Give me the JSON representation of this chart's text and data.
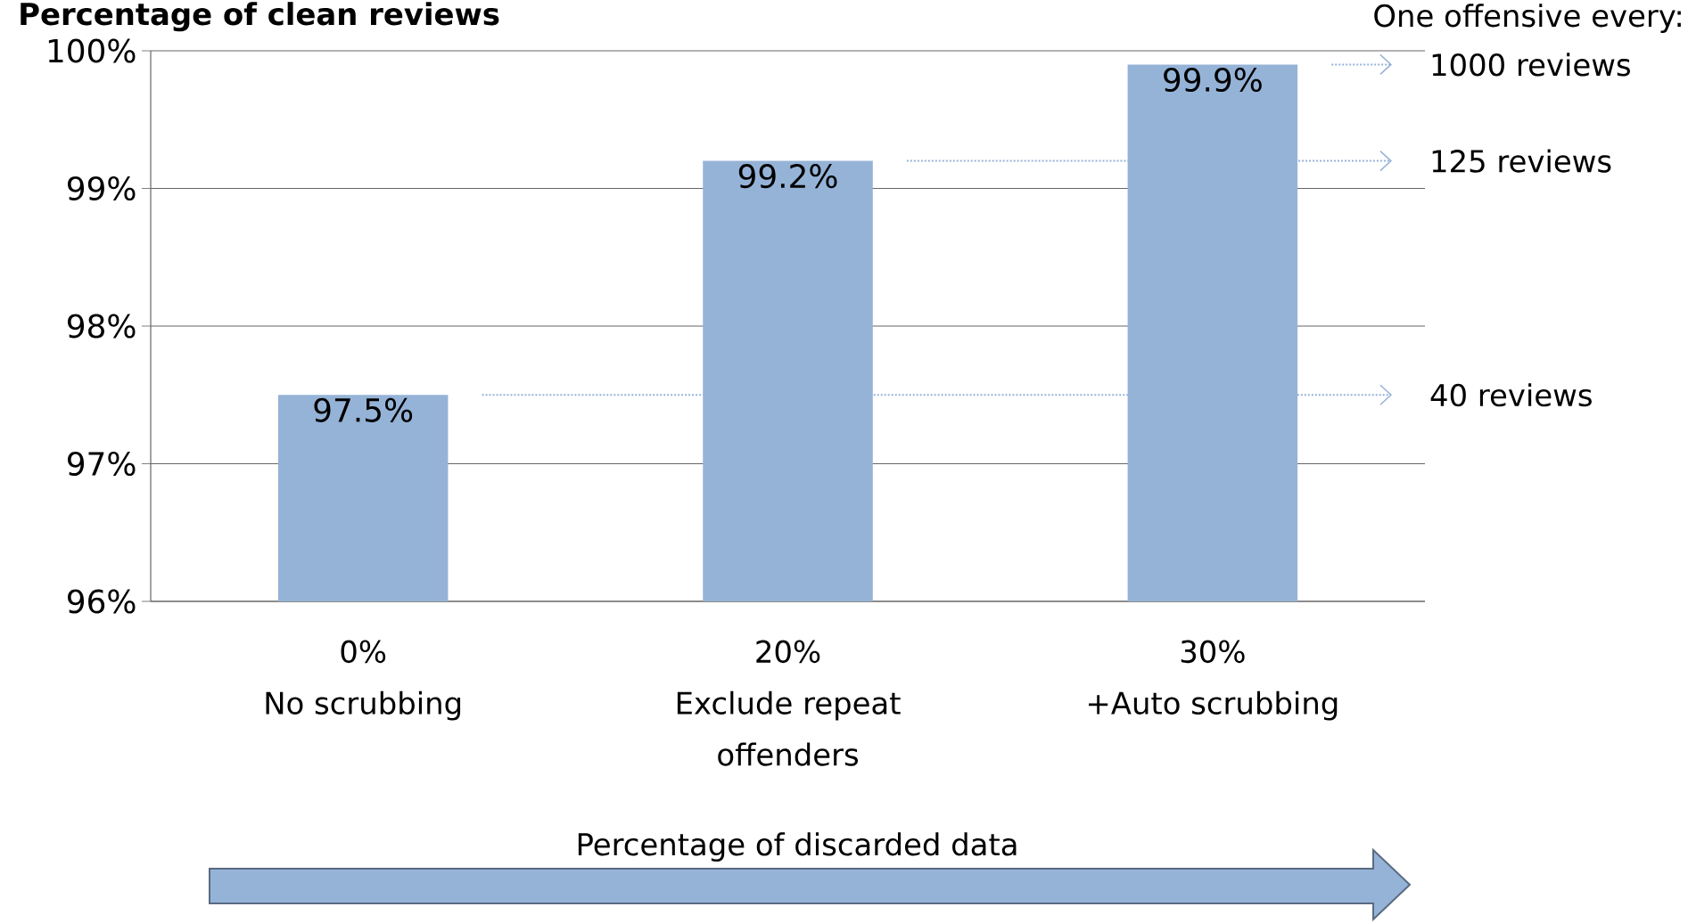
{
  "chart_data": {
    "type": "bar",
    "title": "Percentage of clean reviews",
    "categories": [
      "0%\nNo scrubbing",
      "20%\nExclude  repeat\noffenders",
      "30%\n+Auto scrubbing"
    ],
    "values": [
      97.5,
      99.2,
      99.9
    ],
    "value_labels": [
      "97.5%",
      "99.2%",
      "99.9%"
    ],
    "color": "#95b3d7",
    "xlabel": "Percentage of discarded data",
    "ylim": [
      96,
      100
    ],
    "yticks": [
      {
        "value": 96,
        "label": "96%"
      },
      {
        "value": 97,
        "label": "97%"
      },
      {
        "value": 98,
        "label": "98%"
      },
      {
        "value": 99,
        "label": "99%"
      },
      {
        "value": 100,
        "label": "100%"
      }
    ],
    "grid": "y",
    "annotations": [
      "One offensive every:"
    ],
    "ref_lines": [
      {
        "axis": "y",
        "value": 99.9,
        "label": "1000 reviews",
        "color": "#95b3d7",
        "line_style": "dotted"
      },
      {
        "axis": "y",
        "value": 99.2,
        "label": "125 reviews",
        "color": "#95b3d7",
        "line_style": "dotted"
      },
      {
        "axis": "y",
        "value": 97.5,
        "label": "40 reviews",
        "color": "#95b3d7",
        "line_style": "dotted"
      }
    ]
  }
}
